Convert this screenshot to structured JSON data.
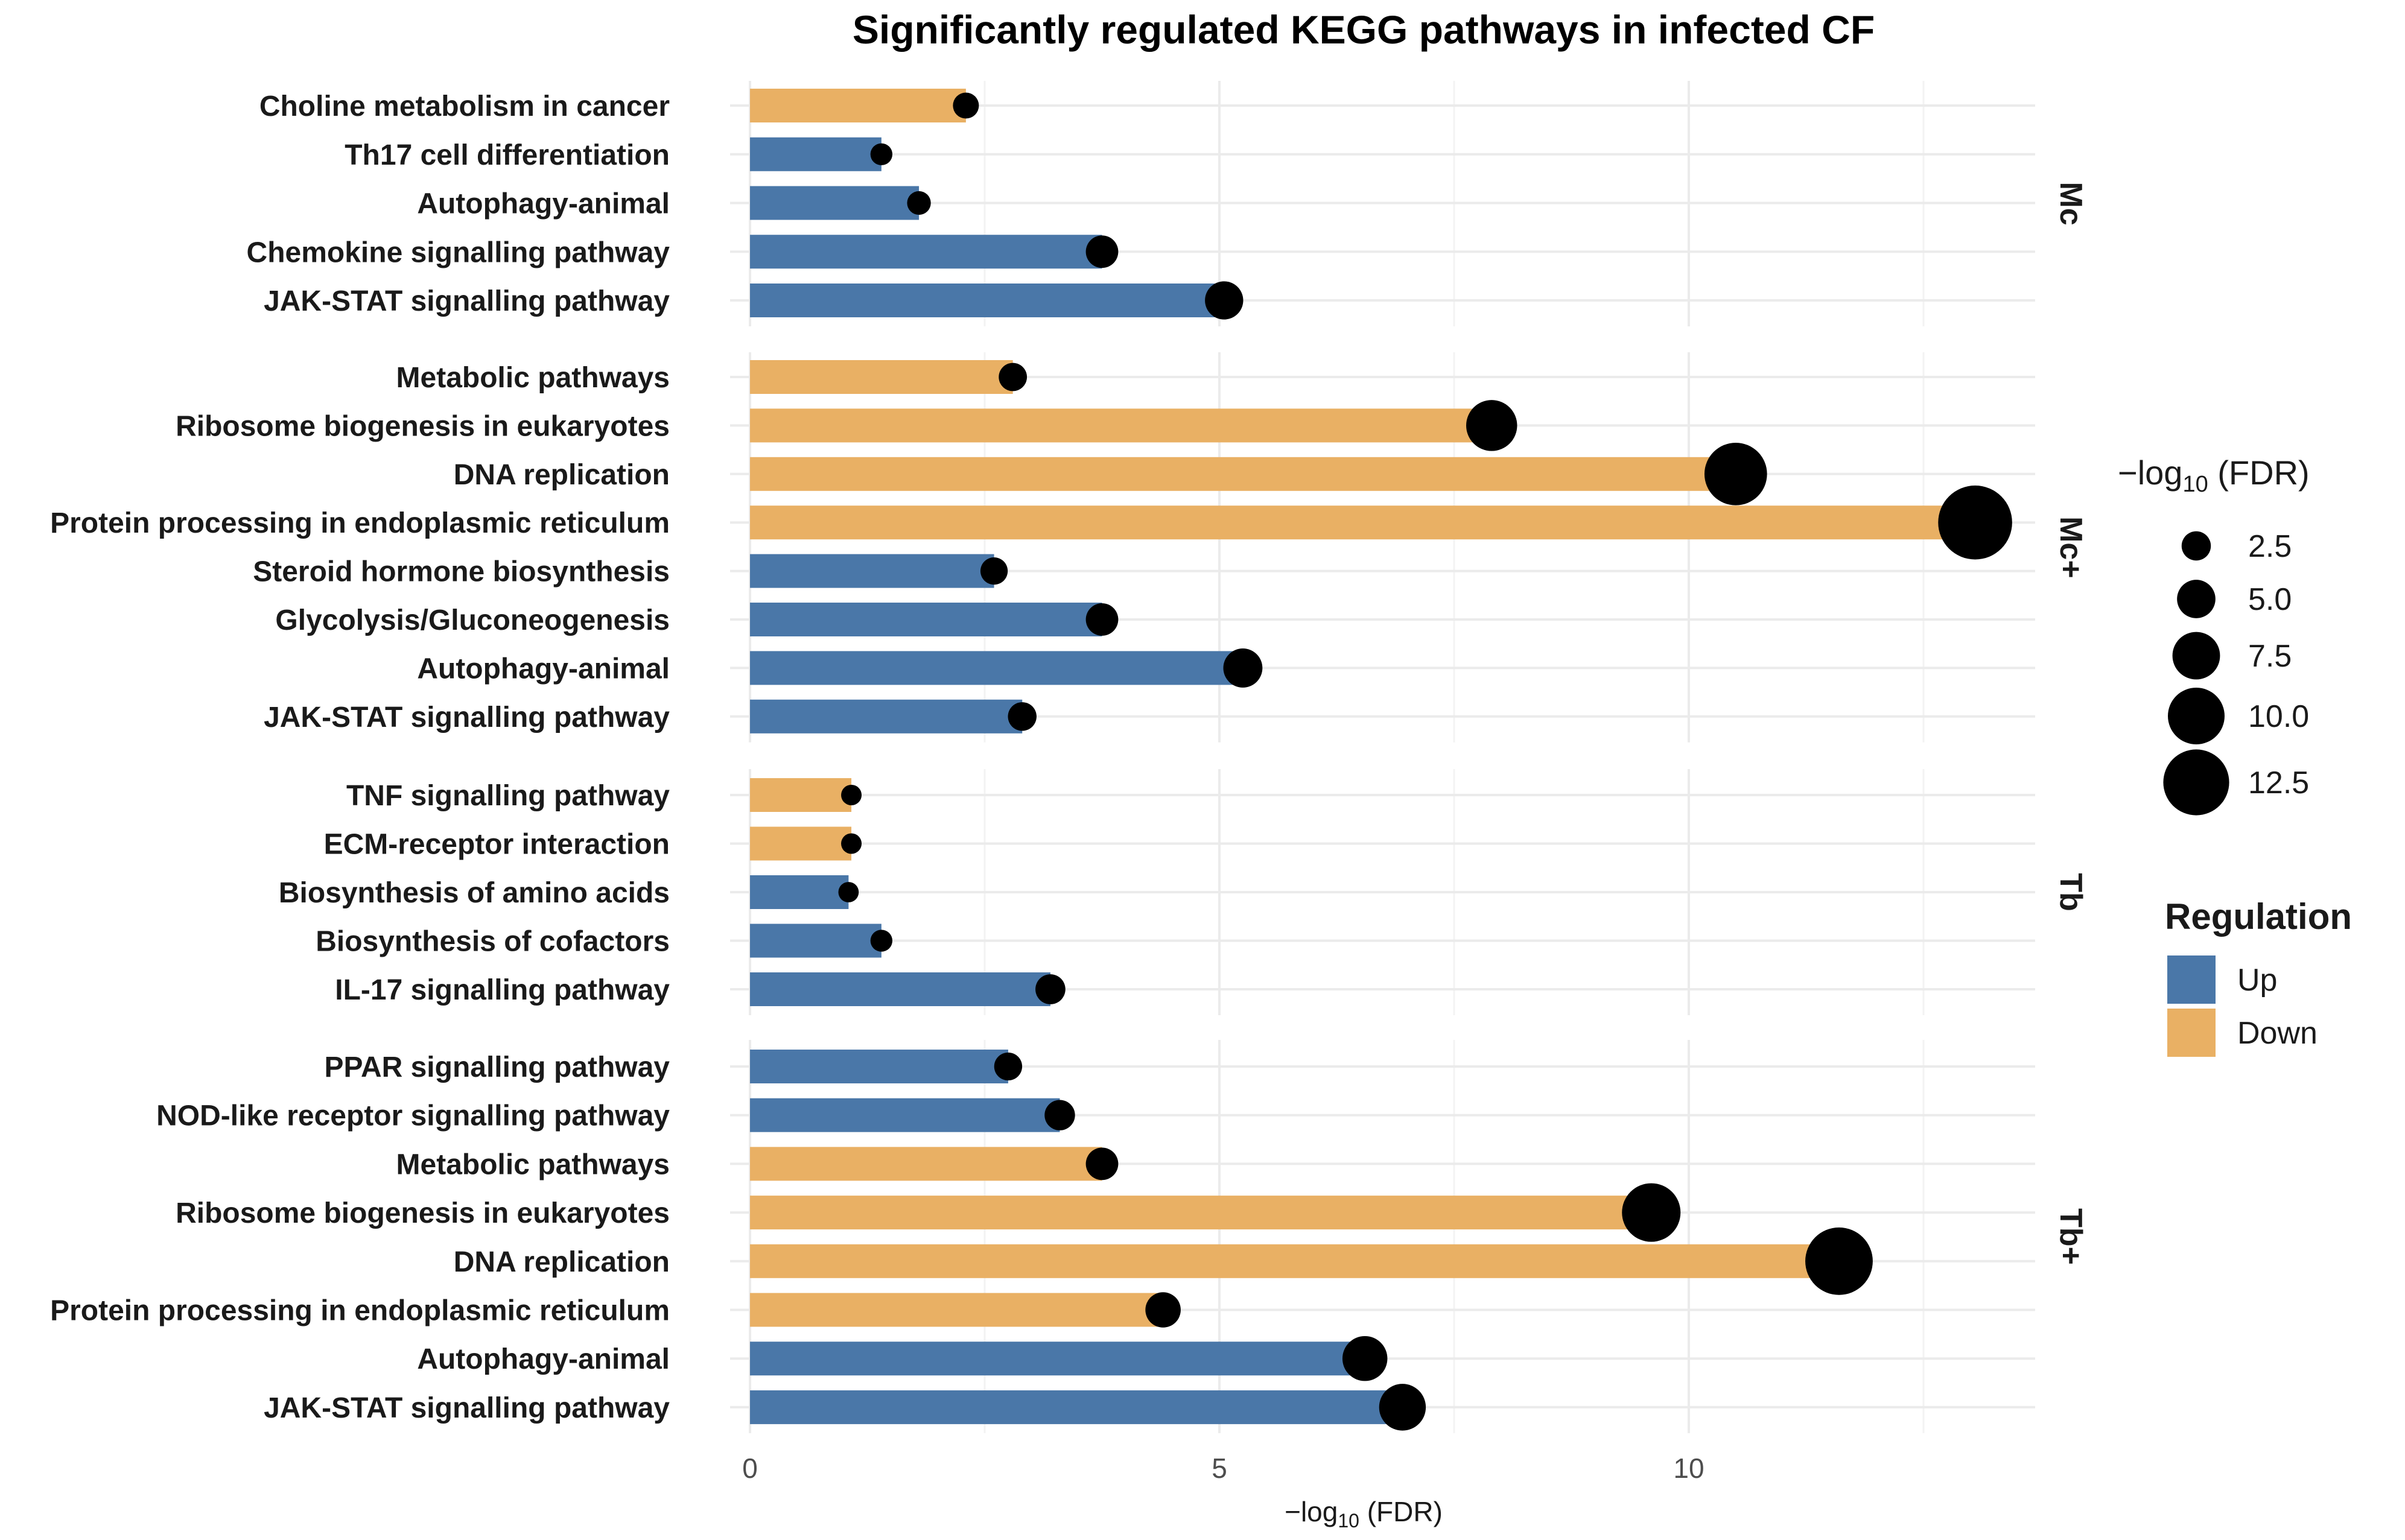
{
  "chart_data": {
    "type": "bar",
    "title": "Significantly regulated KEGG pathways in infected CF",
    "xlabel": "−log10 (FDR)",
    "xlim": [
      0,
      13.7
    ],
    "x_ticks": [
      0,
      5,
      10
    ],
    "grid": true,
    "facets": [
      {
        "name": "Mc",
        "rows": [
          {
            "pathway": "Choline metabolism in cancer",
            "value": 2.3,
            "regulation": "Down"
          },
          {
            "pathway": "Th17 cell differentiation",
            "value": 1.4,
            "regulation": "Up"
          },
          {
            "pathway": "Autophagy-animal",
            "value": 1.8,
            "regulation": "Up"
          },
          {
            "pathway": "Chemokine signalling pathway",
            "value": 3.75,
            "regulation": "Up"
          },
          {
            "pathway": "JAK-STAT signalling pathway",
            "value": 5.05,
            "regulation": "Up"
          }
        ]
      },
      {
        "name": "Mc+",
        "rows": [
          {
            "pathway": "Metabolic pathways",
            "value": 2.8,
            "regulation": "Down"
          },
          {
            "pathway": "Ribosome biogenesis in eukaryotes",
            "value": 7.9,
            "regulation": "Down"
          },
          {
            "pathway": "DNA replication",
            "value": 10.5,
            "regulation": "Down"
          },
          {
            "pathway": "Protein processing in endoplasmic reticulum",
            "value": 13.05,
            "regulation": "Down"
          },
          {
            "pathway": "Steroid hormone biosynthesis",
            "value": 2.6,
            "regulation": "Up"
          },
          {
            "pathway": "Glycolysis/Gluconeogenesis",
            "value": 3.75,
            "regulation": "Up"
          },
          {
            "pathway": "Autophagy-animal",
            "value": 5.25,
            "regulation": "Up"
          },
          {
            "pathway": "JAK-STAT signalling pathway",
            "value": 2.9,
            "regulation": "Up"
          }
        ]
      },
      {
        "name": "Tb",
        "rows": [
          {
            "pathway": "TNF signalling pathway",
            "value": 1.08,
            "regulation": "Down"
          },
          {
            "pathway": "ECM-receptor interaction",
            "value": 1.08,
            "regulation": "Down"
          },
          {
            "pathway": "Biosynthesis of amino acids",
            "value": 1.05,
            "regulation": "Up"
          },
          {
            "pathway": "Biosynthesis of cofactors",
            "value": 1.4,
            "regulation": "Up"
          },
          {
            "pathway": "IL-17 signalling pathway",
            "value": 3.2,
            "regulation": "Up"
          }
        ]
      },
      {
        "name": "Tb+",
        "rows": [
          {
            "pathway": "PPAR signalling pathway",
            "value": 2.75,
            "regulation": "Up"
          },
          {
            "pathway": "NOD-like receptor signalling pathway",
            "value": 3.3,
            "regulation": "Up"
          },
          {
            "pathway": "Metabolic pathways",
            "value": 3.75,
            "regulation": "Down"
          },
          {
            "pathway": "Ribosome biogenesis in eukaryotes",
            "value": 9.6,
            "regulation": "Down"
          },
          {
            "pathway": "DNA replication",
            "value": 11.6,
            "regulation": "Down"
          },
          {
            "pathway": "Protein processing in endoplasmic reticulum",
            "value": 4.4,
            "regulation": "Down"
          },
          {
            "pathway": "Autophagy-animal",
            "value": 6.55,
            "regulation": "Up"
          },
          {
            "pathway": "JAK-STAT signalling pathway",
            "value": 6.95,
            "regulation": "Up"
          }
        ]
      }
    ],
    "legend": {
      "size_title": "−log10 (FDR)",
      "size_breaks": [
        "2.5",
        "5.0",
        "7.5",
        "10.0",
        "12.5"
      ],
      "color_title": "Regulation",
      "color_entries": [
        {
          "label": "Up",
          "color": "#4a77a8"
        },
        {
          "label": "Down",
          "color": "#e9b064"
        }
      ],
      "placement": "right"
    },
    "point_color": "#000000"
  }
}
